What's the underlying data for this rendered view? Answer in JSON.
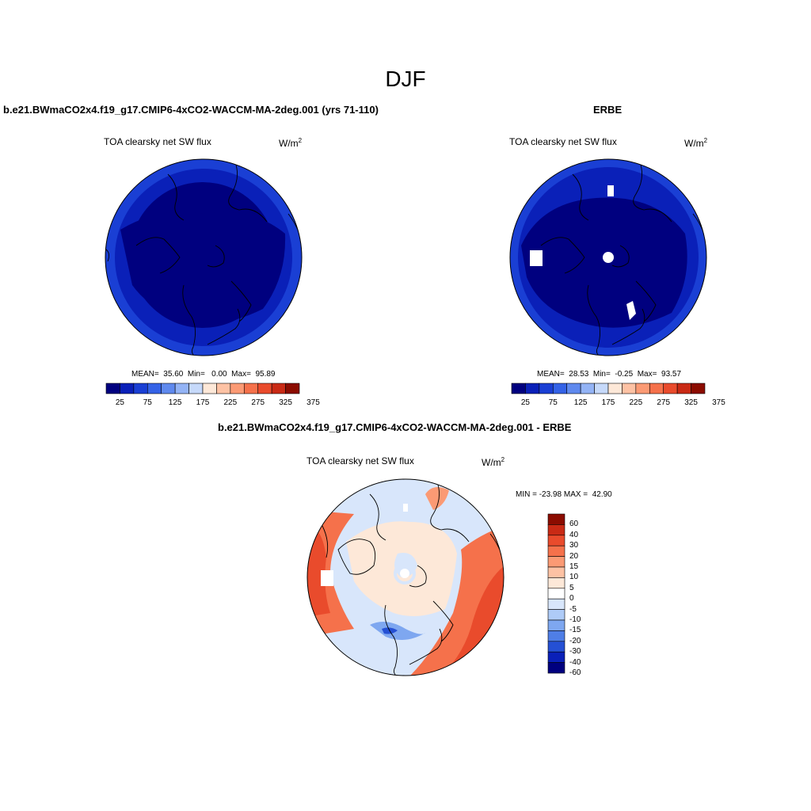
{
  "main_title": "DJF",
  "top_left": {
    "case_title": "b.e21.BWmaCO2x4.f19_g17.CMIP6-4xCO2-WACCM-MA-2deg.001 (yrs 71-110)",
    "variable": "TOA clearsky net SW flux",
    "units_base": "W/m",
    "units_exp": "2",
    "stats": "MEAN=  35.60  Min=   0.00  Max=  95.89"
  },
  "top_right": {
    "case_title": "ERBE",
    "variable": "TOA clearsky net SW flux",
    "units_base": "W/m",
    "units_exp": "2",
    "stats": "MEAN=  28.53  Min=  -0.25  Max=  93.57"
  },
  "bottom": {
    "case_title": "b.e21.BWmaCO2x4.f19_g17.CMIP6-4xCO2-WACCM-MA-2deg.001 - ERBE",
    "variable": "TOA clearsky net SW flux",
    "units_base": "W/m",
    "units_exp": "2",
    "stats": "MIN = -23.98 MAX =  42.90"
  },
  "abs_colorbar": {
    "colors": [
      "#00007f",
      "#0a20b8",
      "#1a3fd4",
      "#3462e6",
      "#5f89ee",
      "#93b3f5",
      "#c6d9fa",
      "#fde8d8",
      "#fdc2a4",
      "#fb9a74",
      "#f5714b",
      "#e94b2c",
      "#c92a15",
      "#8b0c00"
    ],
    "tick_labels": [
      "25",
      "75",
      "125",
      "175",
      "225",
      "275",
      "325",
      "375"
    ]
  },
  "diff_colorbar": {
    "colors": [
      "#8b0c00",
      "#c92a15",
      "#e94b2c",
      "#f5714b",
      "#fb9a74",
      "#fdc2a4",
      "#fde8d8",
      "#ffffff",
      "#d8e6fb",
      "#aecbf7",
      "#7ea7f0",
      "#4f7ee6",
      "#2550d4",
      "#0a20b8",
      "#00007f"
    ],
    "tick_labels": [
      "60",
      "40",
      "30",
      "20",
      "15",
      "10",
      "5",
      "0",
      "-5",
      "-10",
      "-15",
      "-20",
      "-30",
      "-40",
      "-60"
    ]
  }
}
